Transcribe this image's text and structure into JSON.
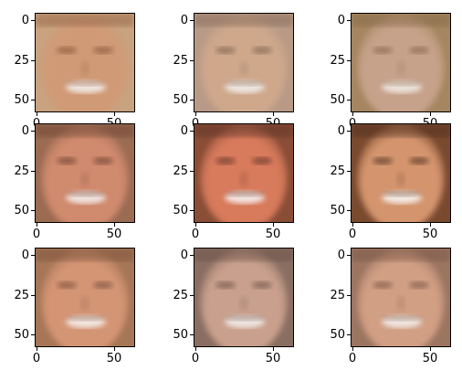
{
  "figure": {
    "panels": [
      {
        "id": "face-1",
        "bg": "#c9a27f",
        "skin": "#d09a76",
        "hair": "#7a4a2e",
        "mouth": "#f3ece8"
      },
      {
        "id": "face-2",
        "bg": "#b89a86",
        "skin": "#cfa88c",
        "hair": "#6e5444",
        "mouth": "#f1ece8"
      },
      {
        "id": "face-3",
        "bg": "#a58660",
        "skin": "#c7a28a",
        "hair": "#7a5a3c",
        "mouth": "#f0e8e2"
      },
      {
        "id": "face-4",
        "bg": "#9b6b52",
        "skin": "#d08a6e",
        "hair": "#5a3425",
        "mouth": "#f4ecea"
      },
      {
        "id": "face-5",
        "bg": "#8a4d36",
        "skin": "#d87a5c",
        "hair": "#4d2a20",
        "mouth": "#f6efee"
      },
      {
        "id": "face-6",
        "bg": "#7a4a2f",
        "skin": "#d4956e",
        "hair": "#3d2416",
        "mouth": "#f7f2ef"
      },
      {
        "id": "face-7",
        "bg": "#a67656",
        "skin": "#d49574",
        "hair": "#6b4330",
        "mouth": "#f5eeea"
      },
      {
        "id": "face-8",
        "bg": "#8a6e62",
        "skin": "#c9a08d",
        "hair": "#5d463c",
        "mouth": "#f2ece9"
      },
      {
        "id": "face-9",
        "bg": "#9c7561",
        "skin": "#d19f84",
        "hair": "#6c4c3d",
        "mouth": "#f3ece9"
      }
    ],
    "axis": {
      "yticks": [
        "0",
        "25",
        "50"
      ],
      "xticks": [
        "0",
        "50"
      ]
    }
  }
}
